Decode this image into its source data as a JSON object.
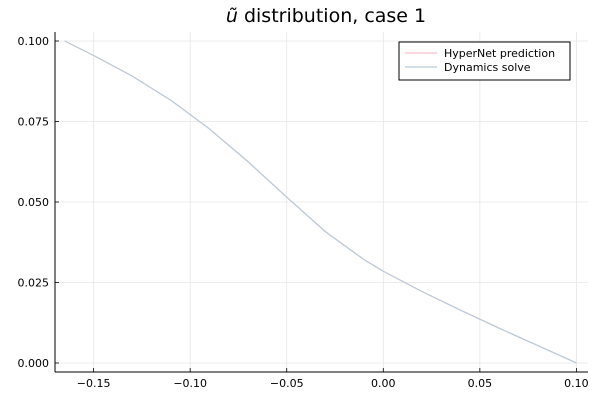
{
  "chart_data": {
    "type": "line",
    "title_symbol": "ũ",
    "title_rest": " distribution, case 1",
    "xlabel": "",
    "ylabel": "",
    "xlim": [
      -0.17,
      0.106
    ],
    "ylim": [
      -0.0028,
      0.1028
    ],
    "xticks": [
      -0.15,
      -0.1,
      -0.05,
      0.0,
      0.05,
      0.1
    ],
    "xtick_labels": [
      "−0.15",
      "−0.10",
      "−0.05",
      "0.00",
      "0.05",
      "0.10"
    ],
    "yticks": [
      0.0,
      0.025,
      0.05,
      0.075,
      0.1
    ],
    "ytick_labels": [
      "0.000",
      "0.025",
      "0.050",
      "0.075",
      "0.100"
    ],
    "grid": true,
    "legend_position": "top-right",
    "series": [
      {
        "name": "HyperNet prediction",
        "color": "#f4bfcc",
        "x": [
          -0.165,
          -0.15,
          -0.13,
          -0.11,
          -0.09,
          -0.07,
          -0.05,
          -0.03,
          -0.01,
          0.0,
          0.02,
          0.04,
          0.06,
          0.08,
          0.1
        ],
        "y": [
          0.1,
          0.0955,
          0.0891,
          0.0816,
          0.0727,
          0.0625,
          0.0515,
          0.0408,
          0.0321,
          0.0285,
          0.0222,
          0.0164,
          0.0108,
          0.0054,
          0.0
        ]
      },
      {
        "name": "Dynamics solve",
        "color": "#b9ccd8",
        "x": [
          -0.165,
          -0.15,
          -0.13,
          -0.11,
          -0.09,
          -0.07,
          -0.05,
          -0.03,
          -0.01,
          0.0,
          0.02,
          0.04,
          0.06,
          0.08,
          0.1
        ],
        "y": [
          0.1,
          0.0955,
          0.0891,
          0.0816,
          0.0727,
          0.0625,
          0.0515,
          0.0408,
          0.0321,
          0.0285,
          0.0222,
          0.0164,
          0.0108,
          0.0054,
          0.0
        ]
      }
    ]
  }
}
